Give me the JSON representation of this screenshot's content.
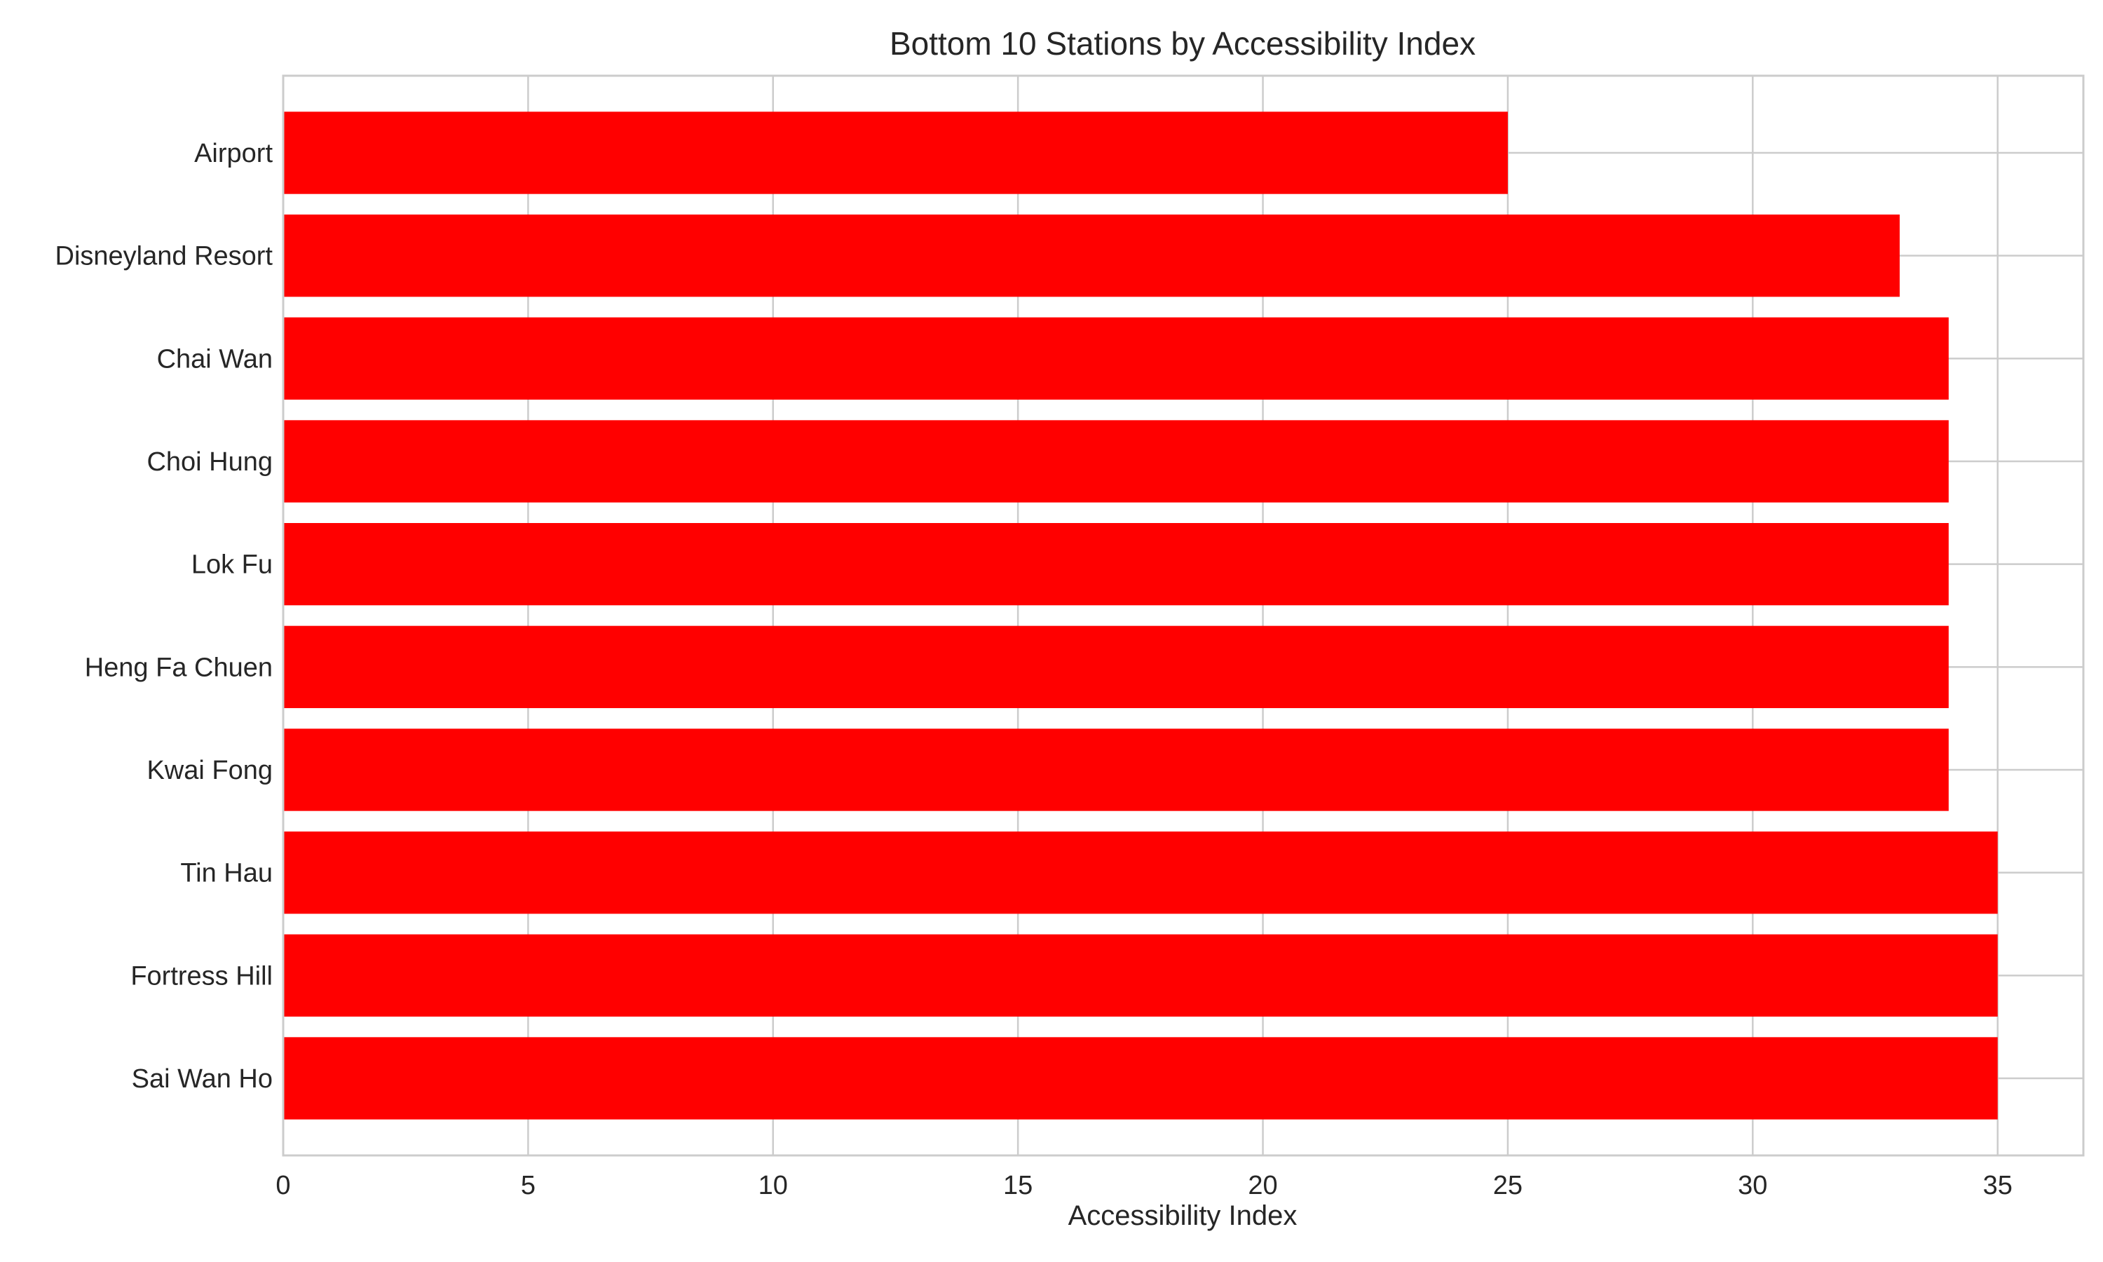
{
  "chart_data": {
    "type": "bar",
    "orientation": "horizontal",
    "title": "Bottom 10 Stations by Accessibility Index",
    "xlabel": "Accessibility Index",
    "ylabel": "",
    "categories": [
      "Airport",
      "Disneyland Resort",
      "Chai Wan",
      "Choi Hung",
      "Lok Fu",
      "Heng Fa Chuen",
      "Kwai Fong",
      "Tin Hau",
      "Fortress Hill",
      "Sai Wan Ho"
    ],
    "values": [
      25,
      33,
      34,
      34,
      34,
      34,
      34,
      35,
      35,
      35
    ],
    "xlim": [
      0,
      36.75
    ],
    "xticks": [
      0,
      5,
      10,
      15,
      20,
      25,
      30,
      35
    ],
    "grid": true,
    "bar_color": "#ff0000",
    "grid_color": "#cccccc"
  }
}
